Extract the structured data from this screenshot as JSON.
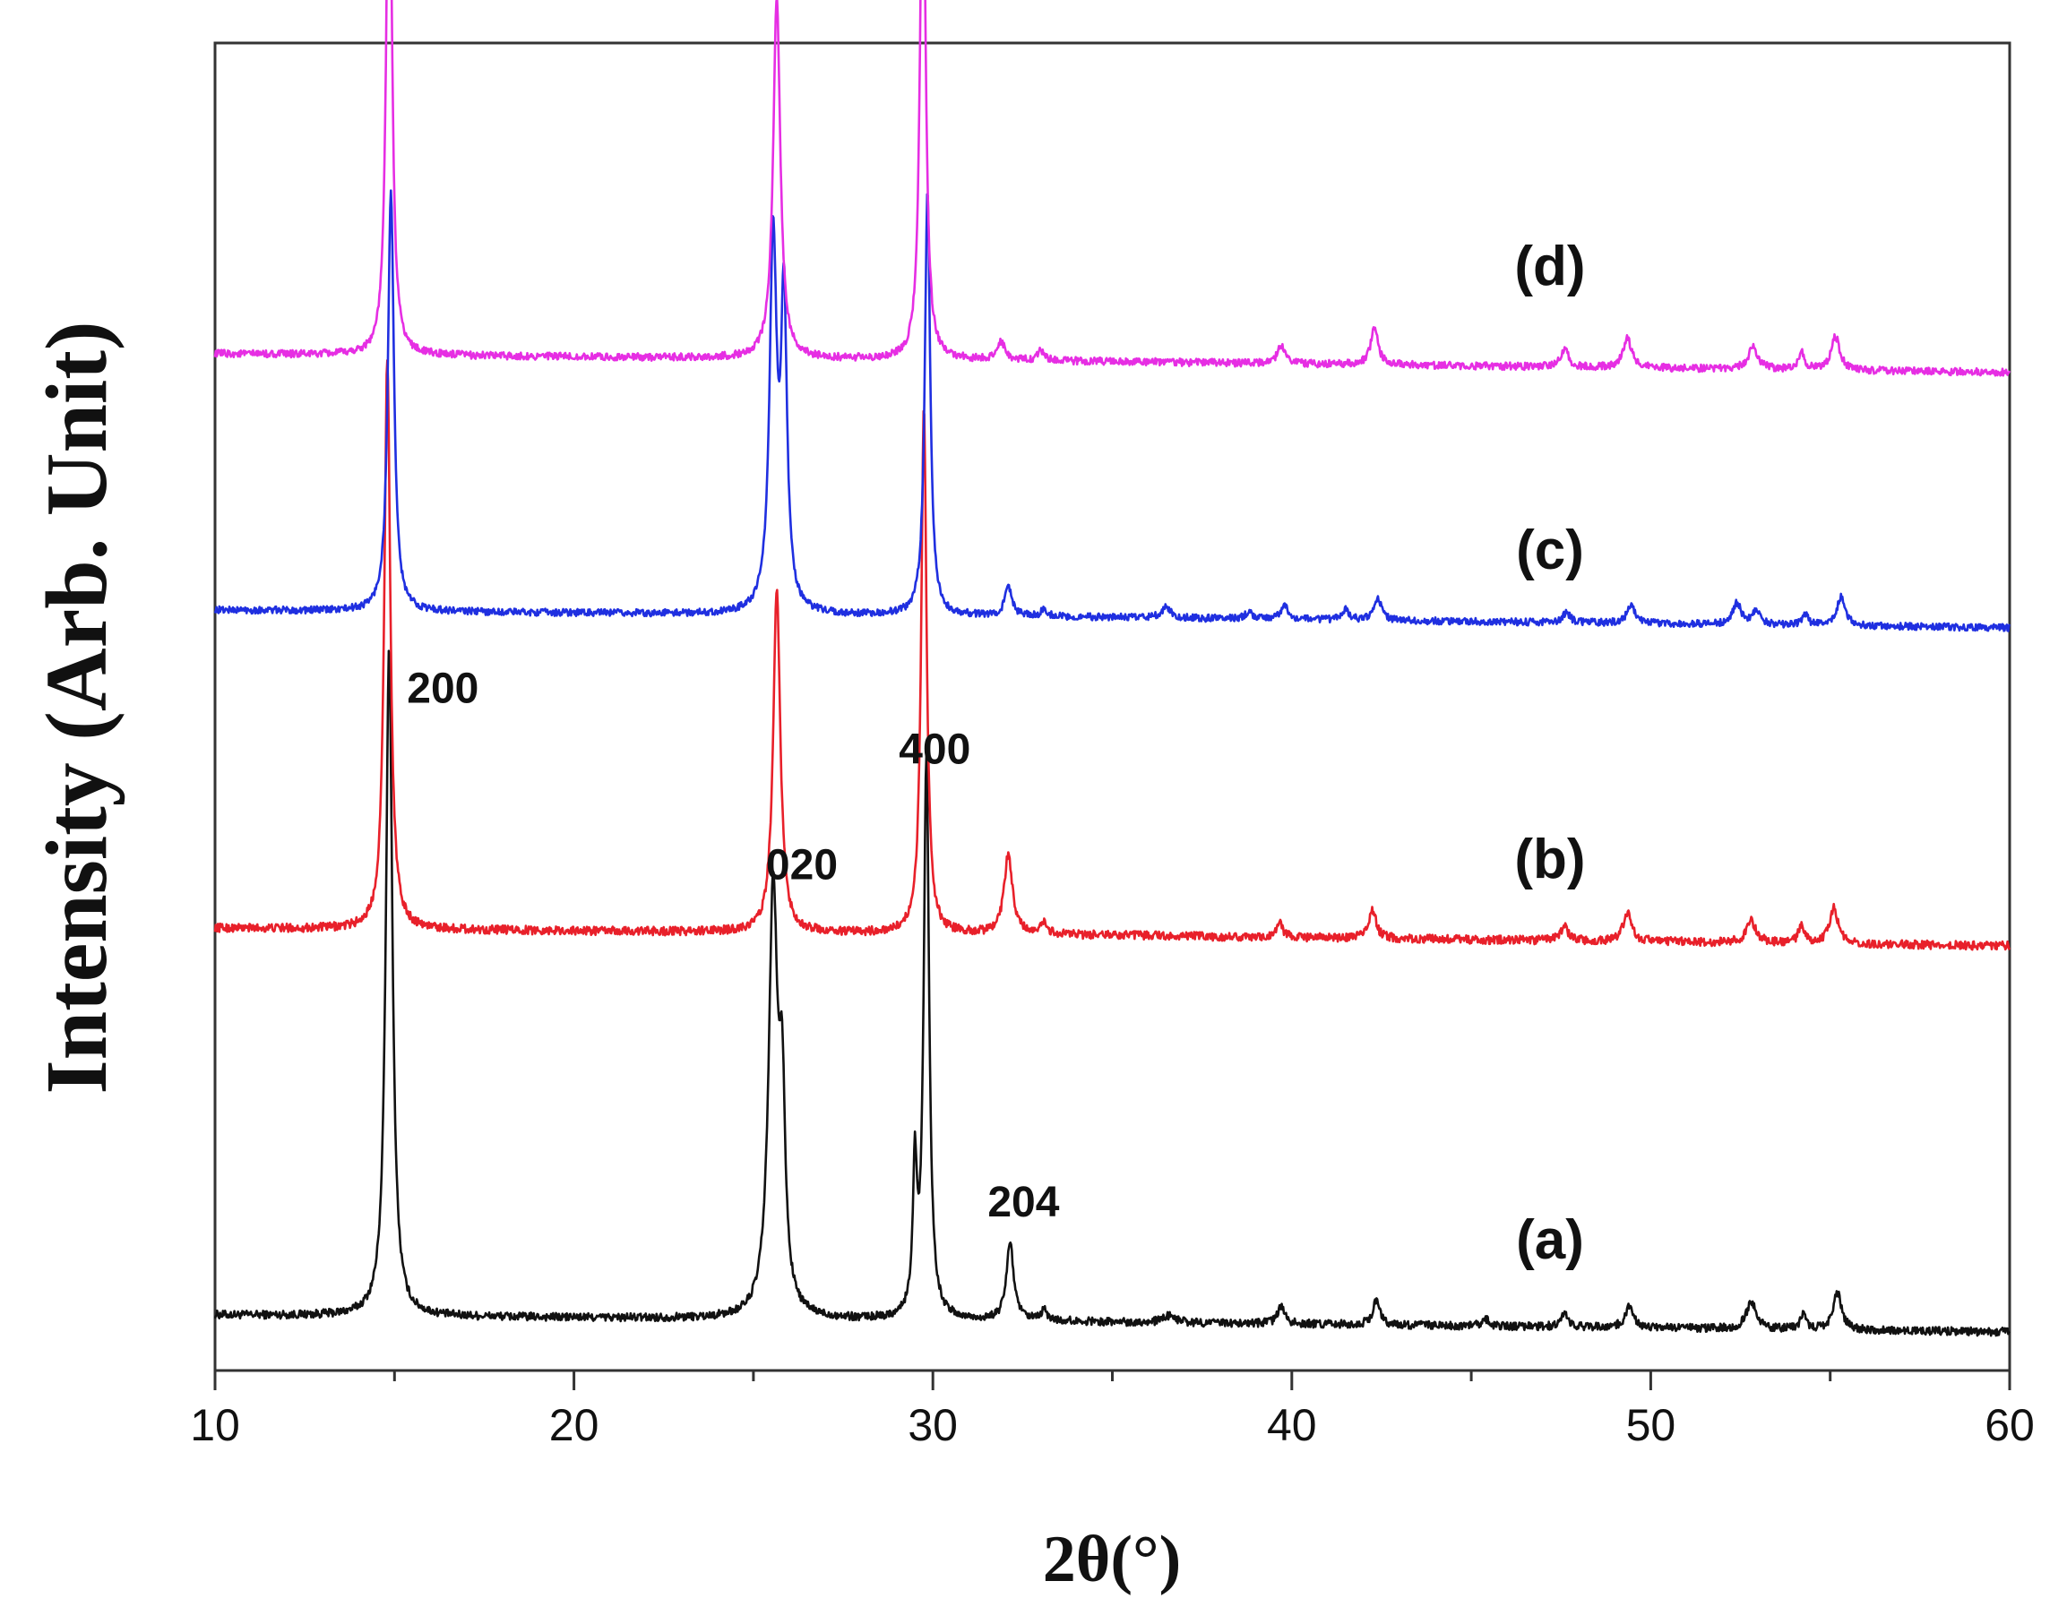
{
  "chart_data": {
    "type": "line",
    "xlabel": "2θ(°)",
    "ylabel": "Intensity (Arb. Unit)",
    "xlim": [
      10,
      60
    ],
    "xticks": [
      10,
      20,
      30,
      40,
      50,
      60
    ],
    "x_minor_step": 5,
    "y_ticks_shown": false,
    "grid": false,
    "legend": "none",
    "y_unit_note": "arbitrary units; each pattern vertically offset",
    "series": [
      {
        "id": "a",
        "label": "(a)",
        "color": "#111111",
        "baseline": [
          [
            10,
            0.0
          ],
          [
            34,
            -0.02
          ],
          [
            60,
            -0.05
          ]
        ],
        "peaks": [
          {
            "x": 14.85,
            "y": 1.96,
            "w": 0.11
          },
          {
            "x": 25.55,
            "y": 1.24,
            "w": 0.15
          },
          {
            "x": 25.8,
            "y": 0.55,
            "w": 0.1
          },
          {
            "x": 29.5,
            "y": 0.42,
            "w": 0.07
          },
          {
            "x": 29.82,
            "y": 1.65,
            "w": 0.09
          },
          {
            "x": 32.15,
            "y": 0.23,
            "w": 0.12
          },
          {
            "x": 33.1,
            "y": 0.03,
            "w": 0.1
          },
          {
            "x": 36.6,
            "y": 0.02,
            "w": 0.2
          },
          {
            "x": 39.7,
            "y": 0.05,
            "w": 0.12
          },
          {
            "x": 42.35,
            "y": 0.07,
            "w": 0.12
          },
          {
            "x": 45.4,
            "y": 0.02,
            "w": 0.12
          },
          {
            "x": 47.6,
            "y": 0.04,
            "w": 0.12
          },
          {
            "x": 49.4,
            "y": 0.06,
            "w": 0.14
          },
          {
            "x": 52.8,
            "y": 0.08,
            "w": 0.16
          },
          {
            "x": 54.25,
            "y": 0.04,
            "w": 0.1
          },
          {
            "x": 55.2,
            "y": 0.11,
            "w": 0.14
          }
        ],
        "noise": 0.012
      },
      {
        "id": "b",
        "label": "(b)",
        "color": "#e8202a",
        "baseline": [
          [
            10,
            0.0
          ],
          [
            34,
            -0.02
          ],
          [
            60,
            -0.05
          ]
        ],
        "peaks": [
          {
            "x": 14.8,
            "y": 1.6,
            "w": 0.1
          },
          {
            "x": 25.65,
            "y": 0.95,
            "w": 0.12
          },
          {
            "x": 29.75,
            "y": 1.47,
            "w": 0.09
          },
          {
            "x": 32.1,
            "y": 0.22,
            "w": 0.14
          },
          {
            "x": 33.1,
            "y": 0.03,
            "w": 0.1
          },
          {
            "x": 39.65,
            "y": 0.04,
            "w": 0.12
          },
          {
            "x": 42.25,
            "y": 0.08,
            "w": 0.12
          },
          {
            "x": 47.6,
            "y": 0.04,
            "w": 0.12
          },
          {
            "x": 49.35,
            "y": 0.08,
            "w": 0.14
          },
          {
            "x": 52.8,
            "y": 0.06,
            "w": 0.16
          },
          {
            "x": 54.2,
            "y": 0.05,
            "w": 0.1
          },
          {
            "x": 55.1,
            "y": 0.1,
            "w": 0.14
          }
        ],
        "noise": 0.012
      },
      {
        "id": "c",
        "label": "(c)",
        "color": "#1f2fe0",
        "baseline": [
          [
            10,
            0.0
          ],
          [
            34,
            -0.02
          ],
          [
            60,
            -0.05
          ]
        ],
        "peaks": [
          {
            "x": 14.9,
            "y": 1.19,
            "w": 0.1
          },
          {
            "x": 25.55,
            "y": 1.04,
            "w": 0.12
          },
          {
            "x": 25.85,
            "y": 0.85,
            "w": 0.1
          },
          {
            "x": 29.85,
            "y": 1.2,
            "w": 0.09
          },
          {
            "x": 32.1,
            "y": 0.08,
            "w": 0.12
          },
          {
            "x": 33.1,
            "y": 0.02,
            "w": 0.1
          },
          {
            "x": 36.5,
            "y": 0.03,
            "w": 0.15
          },
          {
            "x": 38.8,
            "y": 0.02,
            "w": 0.12
          },
          {
            "x": 39.8,
            "y": 0.04,
            "w": 0.12
          },
          {
            "x": 41.5,
            "y": 0.03,
            "w": 0.12
          },
          {
            "x": 42.4,
            "y": 0.06,
            "w": 0.12
          },
          {
            "x": 47.65,
            "y": 0.03,
            "w": 0.12
          },
          {
            "x": 49.45,
            "y": 0.05,
            "w": 0.14
          },
          {
            "x": 52.4,
            "y": 0.06,
            "w": 0.14
          },
          {
            "x": 52.95,
            "y": 0.04,
            "w": 0.12
          },
          {
            "x": 54.3,
            "y": 0.03,
            "w": 0.1
          },
          {
            "x": 55.3,
            "y": 0.08,
            "w": 0.14
          }
        ],
        "noise": 0.01
      },
      {
        "id": "d",
        "label": "(d)",
        "color": "#e62ee3",
        "baseline": [
          [
            10,
            0.0
          ],
          [
            34,
            -0.02
          ],
          [
            60,
            -0.05
          ]
        ],
        "peaks": [
          {
            "x": 14.85,
            "y": 1.58,
            "w": 0.09
          },
          {
            "x": 25.65,
            "y": 0.97,
            "w": 0.12
          },
          {
            "x": 29.72,
            "y": 1.5,
            "w": 0.09
          },
          {
            "x": 31.9,
            "y": 0.05,
            "w": 0.12
          },
          {
            "x": 33.0,
            "y": 0.03,
            "w": 0.1
          },
          {
            "x": 39.7,
            "y": 0.05,
            "w": 0.12
          },
          {
            "x": 42.3,
            "y": 0.1,
            "w": 0.12
          },
          {
            "x": 47.6,
            "y": 0.05,
            "w": 0.12
          },
          {
            "x": 49.35,
            "y": 0.08,
            "w": 0.14
          },
          {
            "x": 52.85,
            "y": 0.06,
            "w": 0.16
          },
          {
            "x": 54.2,
            "y": 0.05,
            "w": 0.1
          },
          {
            "x": 55.15,
            "y": 0.09,
            "w": 0.14
          }
        ],
        "noise": 0.01
      }
    ],
    "peak_annotations": [
      {
        "text": "200",
        "x": 14.85,
        "series": "a"
      },
      {
        "text": "020",
        "x": 25.6,
        "series": "a"
      },
      {
        "text": "400",
        "x": 29.8,
        "series": "a"
      },
      {
        "text": "204",
        "x": 32.15,
        "series": "a"
      }
    ]
  }
}
